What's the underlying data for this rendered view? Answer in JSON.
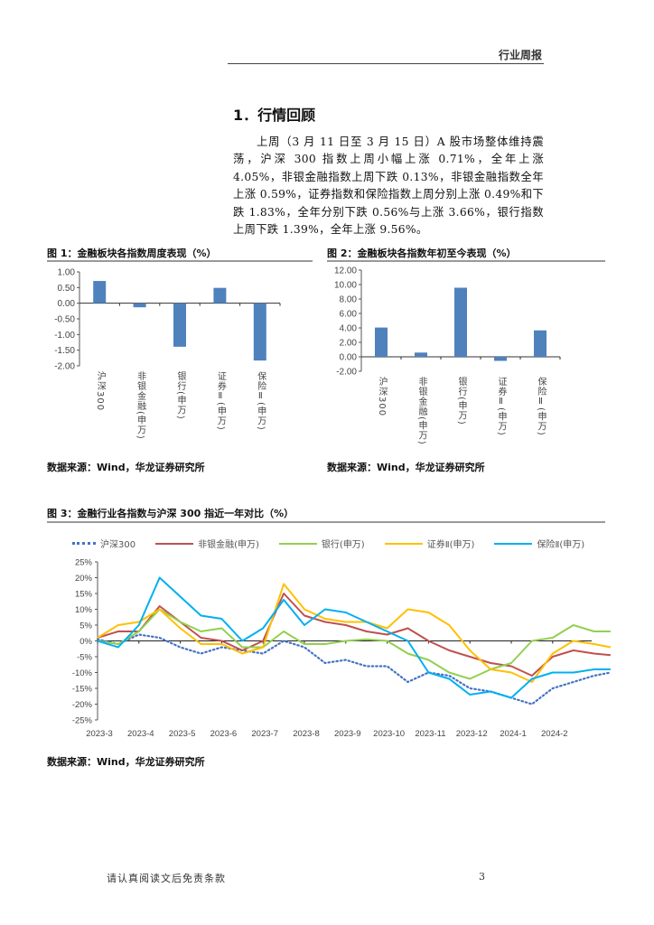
{
  "header": {
    "report_type": "行业周报"
  },
  "section": {
    "title": "1．行情回顾",
    "paragraph": "上周（3 月 11 日至 3 月 15 日）A 股市场整体维持震荡，沪深 300 指数上周小幅上涨 0.71%，全年上涨 4.05%，非银金融指数上周下跌 0.13%，非银金融指数全年上涨 0.59%，证券指数和保险指数上周分别上涨 0.49%和下跌 1.83%，全年分别下跌 0.56%与上涨 3.66%，银行指数上周下跌 1.39%，全年上涨 9.56%。"
  },
  "colors": {
    "bar": "#4f81bd",
    "hs300": "#4472c4",
    "nonbank": "#c0504d",
    "bank": "#92d050",
    "securities": "#ffc000",
    "insurance": "#00b0f0"
  },
  "chart_data": [
    {
      "type": "bar",
      "title": "图 1：金融板块各指数周度表现（%）",
      "categories": [
        "沪深300",
        "非银金融(申万)",
        "银行(申万)",
        "证券Ⅱ(申万)",
        "保险Ⅱ(申万)"
      ],
      "values": [
        0.71,
        -0.13,
        -1.39,
        0.49,
        -1.83
      ],
      "yticks": [
        "1.00",
        "0.50",
        "0.00",
        "-0.50",
        "-1.00",
        "-1.50",
        "-2.00"
      ],
      "ylim": [
        -2,
        1
      ],
      "source": "数据来源：Wind，华龙证券研究所"
    },
    {
      "type": "bar",
      "title": "图 2：金融板块各指数年初至今表现（%）",
      "categories": [
        "沪深300",
        "非银金融(申万)",
        "银行(申万)",
        "证券Ⅱ(申万)",
        "保险Ⅱ(申万)"
      ],
      "values": [
        4.05,
        0.59,
        9.56,
        -0.56,
        3.66
      ],
      "yticks": [
        "12.00",
        "10.00",
        "8.00",
        "6.00",
        "4.00",
        "2.00",
        "0.00",
        "-2.00"
      ],
      "ylim": [
        -2,
        12
      ],
      "source": "数据来源：Wind，华龙证券研究所"
    },
    {
      "type": "line",
      "title": "图 3：金融行业各指数与沪深 300 指近一年对比（%）",
      "x_unit": "months since 2023-3",
      "x": [
        0,
        0.5,
        1,
        1.5,
        2,
        2.5,
        3,
        3.5,
        4,
        4.5,
        5,
        5.5,
        6,
        6.5,
        7,
        7.5,
        8,
        8.5,
        9,
        9.5,
        10,
        10.5,
        11,
        11.5,
        12,
        12.4
      ],
      "xticks": [
        "2023-3",
        "2023-4",
        "2023-5",
        "2023-6",
        "2023-7",
        "2023-8",
        "2023-9",
        "2023-10",
        "2023-11",
        "2023-12",
        "2024-1",
        "2024-2"
      ],
      "yticks": [
        "25%",
        "20%",
        "15%",
        "10%",
        "5%",
        "0%",
        "-5%",
        "-10%",
        "-15%",
        "-20%",
        "-25%"
      ],
      "ylim": [
        -25,
        25
      ],
      "series": [
        {
          "name": "沪深300",
          "style": "dotted",
          "values": [
            0.5,
            -1,
            2,
            1,
            -2,
            -4,
            -2,
            -3,
            -4,
            0,
            -2,
            -7,
            -6,
            -8,
            -8,
            -13,
            -10,
            -11,
            -15,
            -16,
            -18,
            -20,
            -15,
            -13,
            -11,
            -10
          ]
        },
        {
          "name": "非银金融(申万)",
          "style": "solid",
          "values": [
            1,
            3,
            3,
            11,
            6,
            1,
            0,
            -3,
            0,
            15,
            8,
            6,
            5,
            3,
            2,
            4,
            0,
            -3,
            -5,
            -7,
            -8,
            -11,
            -5,
            -3,
            -4,
            -4.5
          ]
        },
        {
          "name": "银行(申万)",
          "style": "solid",
          "values": [
            0,
            -1,
            3,
            10,
            6,
            3,
            4,
            -2,
            -2,
            3,
            -1,
            -1,
            0,
            0.5,
            0,
            -4,
            -6,
            -10,
            -12,
            -9,
            -7,
            0,
            1,
            5,
            3,
            3
          ]
        },
        {
          "name": "证券Ⅱ(申万)",
          "style": "solid",
          "values": [
            1,
            5,
            6,
            10,
            4,
            -1,
            -1,
            -4,
            -2,
            18,
            10,
            7,
            6,
            6,
            4,
            10,
            9,
            5,
            -3,
            -9,
            -10,
            -13,
            -4,
            0,
            -1,
            -2
          ]
        },
        {
          "name": "保险Ⅱ(申万)",
          "style": "solid",
          "values": [
            0,
            -2,
            5,
            20,
            14,
            8,
            7,
            0,
            4,
            13,
            5,
            10,
            9,
            6,
            3,
            0,
            -10,
            -12,
            -17,
            -16,
            -18,
            -12,
            -10,
            -10,
            -9,
            -9
          ]
        }
      ],
      "source": "数据来源：Wind，华龙证券研究所"
    }
  ],
  "footer": {
    "disclaimer": "请认真阅读文后免责条款",
    "page": "3"
  }
}
